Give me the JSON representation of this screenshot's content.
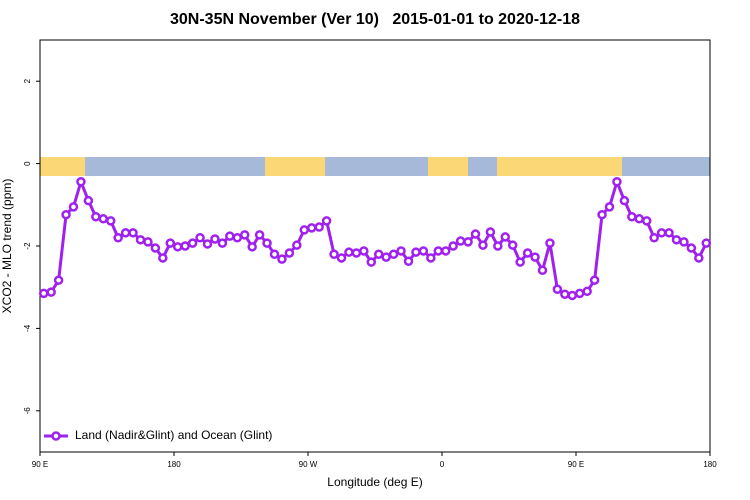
{
  "chart_data": {
    "type": "line",
    "title": "30N-35N November (Ver 10)   2015-01-01 to 2020-12-18",
    "x_label": "Longitude (deg E)",
    "y_label": "XCO2 - MLO trend (ppm)",
    "x": [
      92.5,
      97.5,
      102.5,
      107.5,
      112.5,
      117.5,
      122.5,
      127.5,
      132.5,
      137.5,
      142.5,
      147.5,
      152.5,
      157.5,
      162.5,
      167.5,
      172.5,
      177.5,
      182.5,
      187.5,
      192.5,
      197.5,
      202.5,
      207.5,
      212.5,
      217.5,
      222.5,
      227.5,
      232.5,
      237.5,
      242.5,
      247.5,
      252.5,
      257.5,
      262.5,
      267.5,
      272.5,
      277.5,
      282.5,
      287.5,
      292.5,
      297.5,
      302.5,
      307.5,
      312.5,
      317.5,
      322.5,
      327.5,
      332.5,
      337.5,
      342.5,
      347.5,
      352.5,
      357.5,
      362.5,
      367.5,
      372.5,
      377.5,
      382.5,
      387.5,
      392.5,
      397.5,
      402.5,
      407.5,
      412.5,
      417.5,
      422.5,
      427.5,
      432.5,
      437.5,
      442.5,
      447.5,
      452.5,
      457.5,
      462.5,
      467.5,
      472.5,
      477.5,
      482.5,
      487.5,
      492.5,
      497.5,
      502.5,
      507.5,
      512.5,
      517.5,
      522.5,
      527.5,
      532.5,
      537.5
    ],
    "series": [
      {
        "name": "Land (Nadir&Glint) and Ocean (Glint)",
        "color": "#a020f0",
        "values": [
          -3.15,
          -3.12,
          -2.83,
          -1.24,
          -1.05,
          -0.44,
          -0.9,
          -1.29,
          -1.34,
          -1.39,
          -1.8,
          -1.68,
          -1.68,
          -1.85,
          -1.9,
          -2.05,
          -2.29,
          -1.93,
          -2.02,
          -2.0,
          -1.93,
          -1.8,
          -1.95,
          -1.83,
          -1.93,
          -1.76,
          -1.8,
          -1.73,
          -2.02,
          -1.73,
          -1.93,
          -2.2,
          -2.32,
          -2.17,
          -1.98,
          -1.61,
          -1.56,
          -1.54,
          -1.39,
          -2.2,
          -2.29,
          -2.15,
          -2.17,
          -2.12,
          -2.39,
          -2.2,
          -2.27,
          -2.2,
          -2.12,
          -2.37,
          -2.15,
          -2.12,
          -2.29,
          -2.12,
          -2.12,
          -2.0,
          -1.88,
          -1.9,
          -1.71,
          -1.98,
          -1.66,
          -2.0,
          -1.78,
          -1.98,
          -2.39,
          -2.17,
          -2.27,
          -2.59,
          -1.93,
          -3.05,
          -3.17,
          -3.2,
          -3.15,
          -3.1,
          -2.83,
          -1.24,
          -1.05,
          -0.44,
          -0.9,
          -1.29,
          -1.34,
          -1.39,
          -1.8,
          -1.68,
          -1.68,
          -1.85,
          -1.9,
          -2.05,
          -2.29,
          -1.93
        ]
      }
    ],
    "xlim": [
      90,
      540
    ],
    "xticks": [
      {
        "value": 90,
        "label": "90 E"
      },
      180,
      {
        "value": 270,
        "label": "90 W"
      },
      {
        "value": 360,
        "label": "0"
      },
      {
        "value": 450,
        "label": "90 E"
      },
      {
        "value": 540,
        "label": "180"
      }
    ],
    "ylim": [
      -7,
      3
    ],
    "yticks": [
      -6,
      -4,
      -2,
      0,
      2
    ],
    "legend": "bottom-left"
  }
}
